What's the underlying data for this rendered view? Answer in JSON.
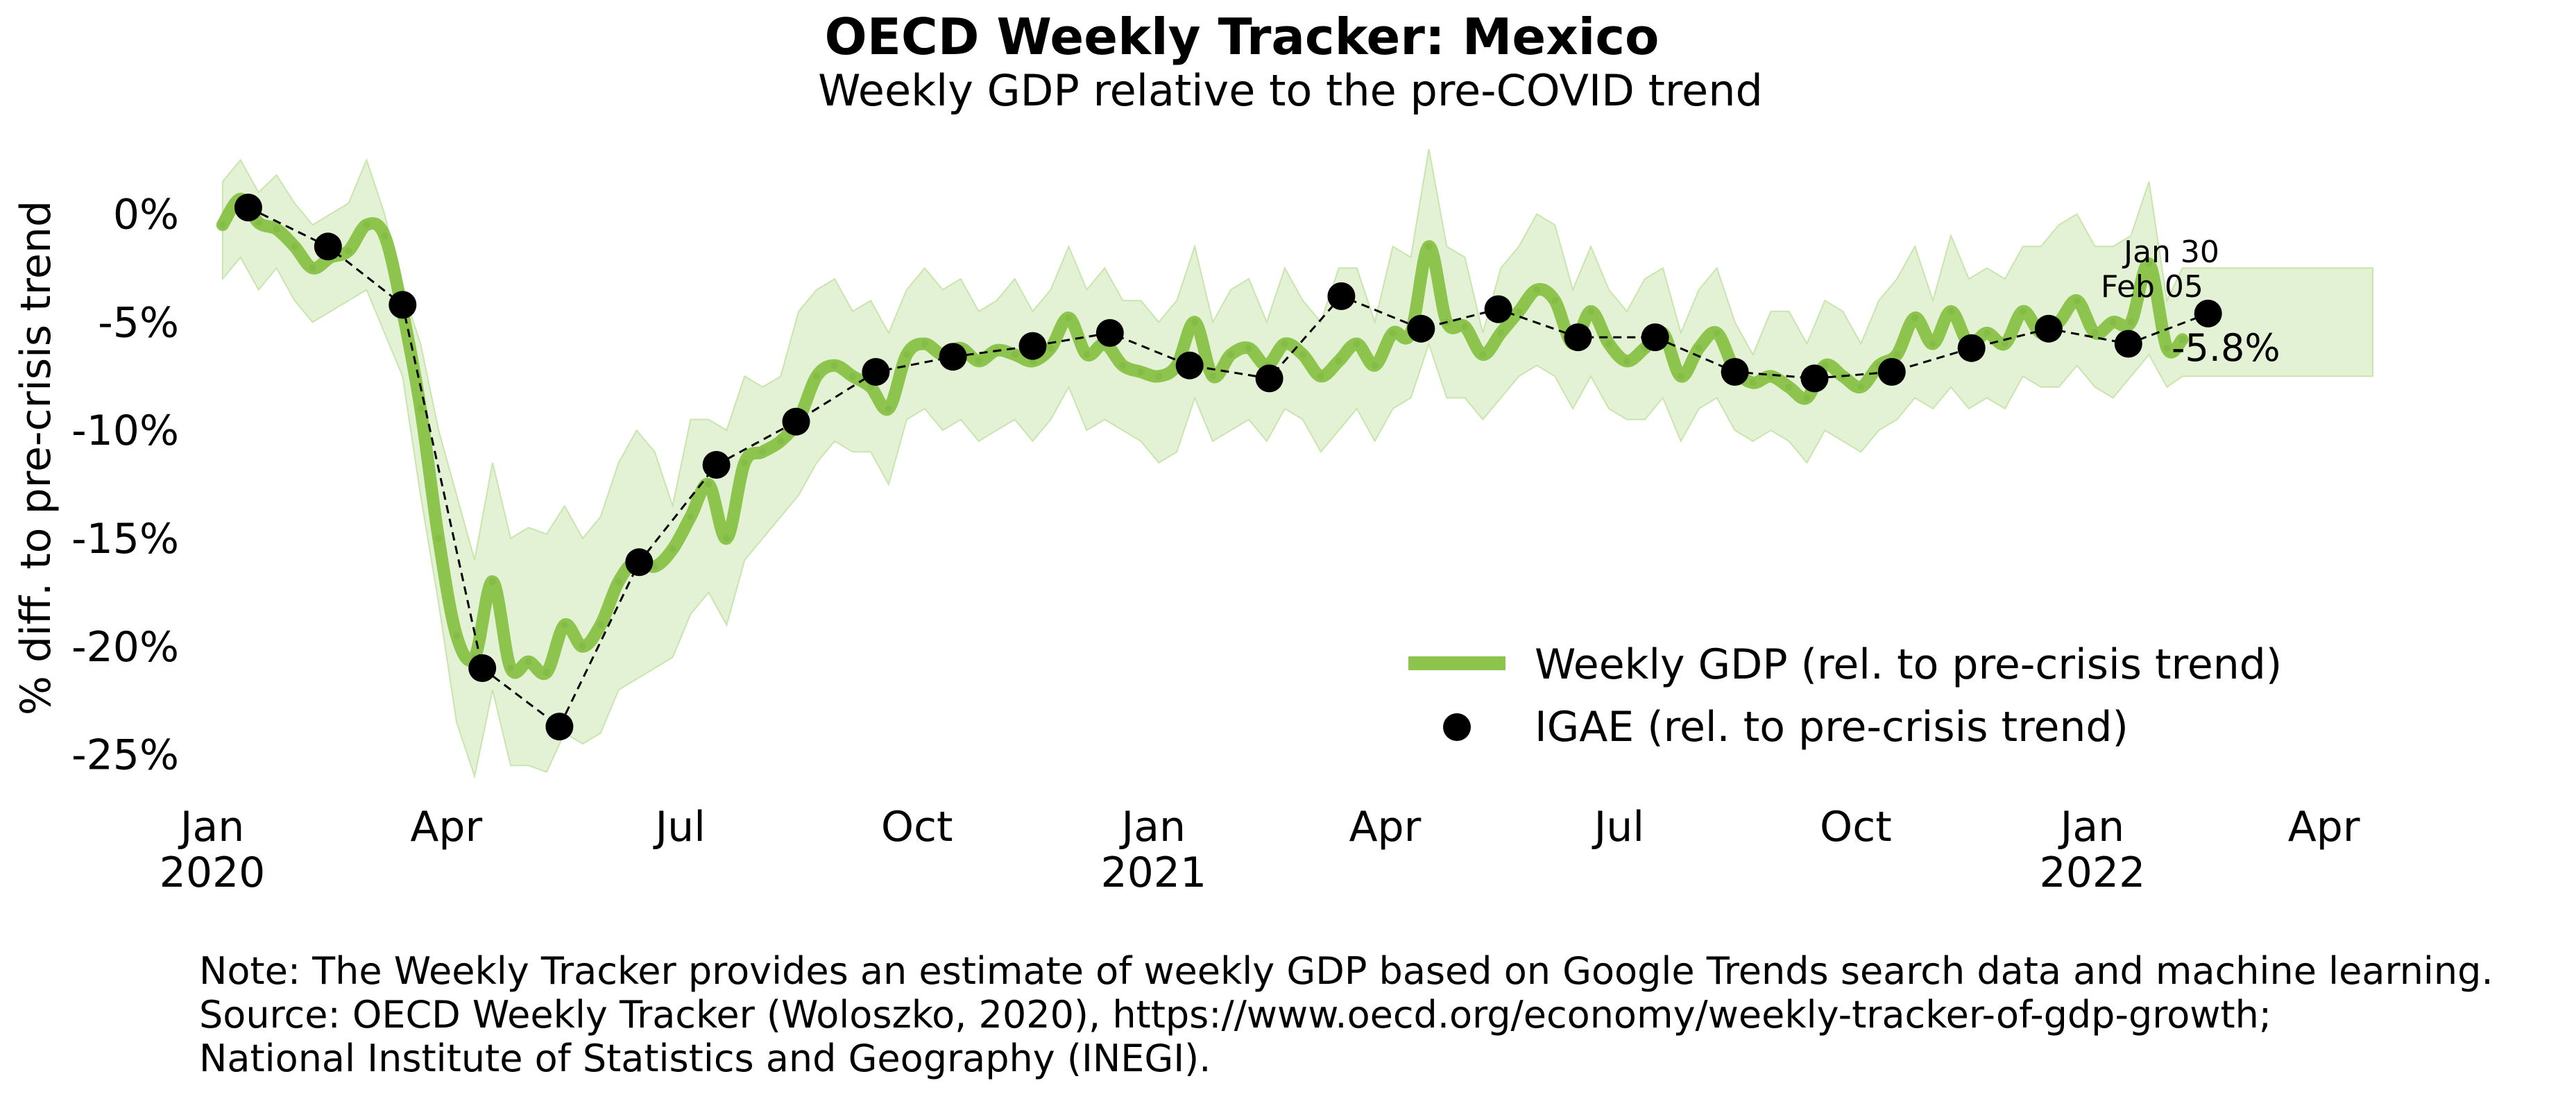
{
  "chart_data": {
    "type": "line",
    "title": "OECD Weekly Tracker: Mexico",
    "subtitle": "Weekly GDP relative to the pre-COVID trend",
    "ylabel": "% diff. to pre-crisis trend",
    "xlabel": "",
    "ylim": [
      -27,
      3
    ],
    "xlim": [
      "2019-12-25",
      "2022-04-20"
    ],
    "grid": false,
    "y_ticks": [
      0,
      -5,
      -10,
      -15,
      -20,
      -25
    ],
    "y_tick_labels": [
      "0%",
      "-5%",
      "-10%",
      "-15%",
      "-20%",
      "-25%"
    ],
    "x_ticks": [
      {
        "date": "2020-01-01",
        "label": "Jan",
        "year": "2020"
      },
      {
        "date": "2020-04-01",
        "label": "Apr",
        "year": ""
      },
      {
        "date": "2020-07-01",
        "label": "Jul",
        "year": ""
      },
      {
        "date": "2020-10-01",
        "label": "Oct",
        "year": ""
      },
      {
        "date": "2021-01-01",
        "label": "Jan",
        "year": "2021"
      },
      {
        "date": "2021-04-01",
        "label": "Apr",
        "year": ""
      },
      {
        "date": "2021-07-01",
        "label": "Jul",
        "year": ""
      },
      {
        "date": "2021-10-01",
        "label": "Oct",
        "year": ""
      },
      {
        "date": "2022-01-01",
        "label": "Jan",
        "year": "2022"
      },
      {
        "date": "2022-04-01",
        "label": "Apr",
        "year": ""
      }
    ],
    "legend": {
      "placement": "lower-right",
      "entries": [
        "Weekly GDP (rel. to pre-crisis trend)",
        "IGAE (rel. to pre-crisis trend)"
      ]
    },
    "colors": {
      "weekly": "#8cc44e",
      "band": "#e3f2d4",
      "band_edge": "#c9e5ad",
      "igae": "#000000"
    },
    "series": [
      {
        "name": "Weekly GDP (rel. to pre-crisis trend)",
        "kind": "weekly-line",
        "x": [
          "2020-01-05",
          "2020-01-12",
          "2020-01-19",
          "2020-01-26",
          "2020-02-02",
          "2020-02-09",
          "2020-02-16",
          "2020-02-23",
          "2020-03-01",
          "2020-03-08",
          "2020-03-15",
          "2020-03-22",
          "2020-03-29",
          "2020-04-05",
          "2020-04-12",
          "2020-04-19",
          "2020-04-26",
          "2020-05-03",
          "2020-05-10",
          "2020-05-17",
          "2020-05-24",
          "2020-05-31",
          "2020-06-07",
          "2020-06-14",
          "2020-06-21",
          "2020-06-28",
          "2020-07-05",
          "2020-07-12",
          "2020-07-19",
          "2020-07-26",
          "2020-08-02",
          "2020-08-09",
          "2020-08-16",
          "2020-08-23",
          "2020-08-30",
          "2020-09-06",
          "2020-09-13",
          "2020-09-20",
          "2020-09-27",
          "2020-10-04",
          "2020-10-11",
          "2020-10-18",
          "2020-10-25",
          "2020-11-01",
          "2020-11-08",
          "2020-11-15",
          "2020-11-22",
          "2020-11-29",
          "2020-12-06",
          "2020-12-13",
          "2020-12-20",
          "2020-12-27",
          "2021-01-03",
          "2021-01-10",
          "2021-01-17",
          "2021-01-24",
          "2021-01-31",
          "2021-02-07",
          "2021-02-14",
          "2021-02-21",
          "2021-02-28",
          "2021-03-07",
          "2021-03-14",
          "2021-03-21",
          "2021-03-28",
          "2021-04-04",
          "2021-04-11",
          "2021-04-18",
          "2021-04-25",
          "2021-05-02",
          "2021-05-09",
          "2021-05-16",
          "2021-05-23",
          "2021-05-30",
          "2021-06-06",
          "2021-06-13",
          "2021-06-20",
          "2021-06-27",
          "2021-07-04",
          "2021-07-11",
          "2021-07-18",
          "2021-07-25",
          "2021-08-01",
          "2021-08-08",
          "2021-08-15",
          "2021-08-22",
          "2021-08-29",
          "2021-09-05",
          "2021-09-12",
          "2021-09-19",
          "2021-09-26",
          "2021-10-03",
          "2021-10-10",
          "2021-10-17",
          "2021-10-24",
          "2021-10-31",
          "2021-11-07",
          "2021-11-14",
          "2021-11-21",
          "2021-11-28",
          "2021-12-05",
          "2021-12-12",
          "2021-12-19",
          "2021-12-26",
          "2022-01-02",
          "2022-01-09",
          "2022-01-16",
          "2022-01-23",
          "2022-01-30",
          "2022-02-05"
        ],
        "values": [
          -0.5,
          0.7,
          -0.4,
          -0.7,
          -1.5,
          -2.5,
          -2.0,
          -1.7,
          -0.5,
          -1.0,
          -4.5,
          -9.0,
          -15.0,
          -19.5,
          -20.5,
          -17.0,
          -21.0,
          -20.7,
          -21.2,
          -19.0,
          -20.0,
          -19.0,
          -17.0,
          -16.0,
          -16.3,
          -15.5,
          -14.0,
          -12.5,
          -15.0,
          -11.5,
          -11.0,
          -10.5,
          -9.5,
          -7.5,
          -7.0,
          -7.5,
          -8.0,
          -9.0,
          -6.5,
          -6.0,
          -6.5,
          -6.2,
          -6.8,
          -6.3,
          -6.5,
          -6.8,
          -6.2,
          -4.8,
          -6.5,
          -6.0,
          -7.0,
          -7.3,
          -7.5,
          -7.0,
          -5.0,
          -7.5,
          -6.5,
          -6.2,
          -7.0,
          -6.0,
          -6.5,
          -7.5,
          -6.8,
          -6.0,
          -7.0,
          -5.5,
          -5.5,
          -1.5,
          -5.0,
          -5.2,
          -6.5,
          -5.5,
          -4.5,
          -3.5,
          -4.0,
          -6.0,
          -4.5,
          -6.0,
          -6.8,
          -6.2,
          -5.5,
          -7.5,
          -6.2,
          -5.5,
          -7.2,
          -7.8,
          -7.5,
          -8.0,
          -8.5,
          -7.0,
          -7.5,
          -8.0,
          -7.0,
          -6.5,
          -4.8,
          -6.0,
          -4.5,
          -6.0,
          -5.5,
          -6.0,
          -4.5,
          -5.5,
          -5.0,
          -4.0,
          -5.5,
          -5.0,
          -5.0,
          -2.3,
          -6.2,
          -5.8
        ]
      },
      {
        "name": "IGAE (rel. to pre-crisis trend)",
        "kind": "monthly-points",
        "x": [
          "2020-01-15",
          "2020-02-15",
          "2020-03-15",
          "2020-04-15",
          "2020-05-15",
          "2020-06-15",
          "2020-07-15",
          "2020-08-15",
          "2020-09-15",
          "2020-10-15",
          "2020-11-15",
          "2020-12-15",
          "2021-01-15",
          "2021-02-15",
          "2021-03-15",
          "2021-04-15",
          "2021-05-15",
          "2021-06-15",
          "2021-07-15",
          "2021-08-15",
          "2021-09-15",
          "2021-10-15",
          "2021-11-15",
          "2021-12-15",
          "2022-01-15",
          "2022-02-15"
        ],
        "values": [
          0.3,
          -1.5,
          -4.2,
          -21.0,
          -23.7,
          -16.1,
          -11.6,
          -9.6,
          -7.3,
          -6.6,
          -6.1,
          -5.5,
          -7.0,
          -7.6,
          -3.8,
          -5.3,
          -4.4,
          -5.7,
          -5.7,
          -7.3,
          -7.6,
          -7.3,
          -6.2,
          -5.3,
          -6.0,
          -4.6
        ]
      }
    ],
    "band": {
      "x": [
        "2020-01-05",
        "2020-01-12",
        "2020-01-19",
        "2020-01-26",
        "2020-02-02",
        "2020-02-09",
        "2020-02-16",
        "2020-02-23",
        "2020-03-01",
        "2020-03-08",
        "2020-03-15",
        "2020-03-22",
        "2020-03-29",
        "2020-04-05",
        "2020-04-12",
        "2020-04-19",
        "2020-04-26",
        "2020-05-03",
        "2020-05-10",
        "2020-05-17",
        "2020-05-24",
        "2020-05-31",
        "2020-06-07",
        "2020-06-14",
        "2020-06-21",
        "2020-06-28",
        "2020-07-05",
        "2020-07-12",
        "2020-07-19",
        "2020-07-26",
        "2020-08-02",
        "2020-08-09",
        "2020-08-16",
        "2020-08-23",
        "2020-08-30",
        "2020-09-06",
        "2020-09-13",
        "2020-09-20",
        "2020-09-27",
        "2020-10-04",
        "2020-10-11",
        "2020-10-18",
        "2020-10-25",
        "2020-11-01",
        "2020-11-08",
        "2020-11-15",
        "2020-11-22",
        "2020-11-29",
        "2020-12-06",
        "2020-12-13",
        "2020-12-20",
        "2020-12-27",
        "2021-01-03",
        "2021-01-10",
        "2021-01-17",
        "2021-01-24",
        "2021-01-31",
        "2021-02-07",
        "2021-02-14",
        "2021-02-21",
        "2021-02-28",
        "2021-03-07",
        "2021-03-14",
        "2021-03-21",
        "2021-03-28",
        "2021-04-04",
        "2021-04-11",
        "2021-04-18",
        "2021-04-25",
        "2021-05-02",
        "2021-05-09",
        "2021-05-16",
        "2021-05-23",
        "2021-05-30",
        "2021-06-06",
        "2021-06-13",
        "2021-06-20",
        "2021-06-27",
        "2021-07-04",
        "2021-07-11",
        "2021-07-18",
        "2021-07-25",
        "2021-08-01",
        "2021-08-08",
        "2021-08-15",
        "2021-08-22",
        "2021-08-29",
        "2021-09-05",
        "2021-09-12",
        "2021-09-19",
        "2021-09-26",
        "2021-10-03",
        "2021-10-10",
        "2021-10-17",
        "2021-10-24",
        "2021-10-31",
        "2021-11-07",
        "2021-11-14",
        "2021-11-21",
        "2021-11-28",
        "2021-12-05",
        "2021-12-12",
        "2021-12-19",
        "2021-12-26",
        "2022-01-02",
        "2022-01-09",
        "2022-01-16",
        "2022-01-23",
        "2022-01-30",
        "2022-02-05",
        "2022-02-20",
        "2022-03-10",
        "2022-04-20"
      ],
      "upper": [
        1.5,
        2.5,
        1.0,
        1.8,
        0.5,
        -0.5,
        0.0,
        0.5,
        2.5,
        0.0,
        -3.5,
        -6.0,
        -10.0,
        -13.0,
        -16.0,
        -11.5,
        -15.0,
        -14.5,
        -14.8,
        -13.5,
        -15.0,
        -14.0,
        -11.5,
        -10.0,
        -11.0,
        -13.5,
        -9.5,
        -9.5,
        -10.0,
        -7.5,
        -8.0,
        -7.5,
        -4.5,
        -3.5,
        -3.0,
        -4.5,
        -4.0,
        -5.5,
        -3.5,
        -2.5,
        -3.5,
        -3.0,
        -4.5,
        -4.0,
        -3.0,
        -4.5,
        -3.5,
        -1.5,
        -3.5,
        -2.5,
        -4.0,
        -4.0,
        -5.0,
        -4.0,
        -1.5,
        -5.0,
        -3.5,
        -3.0,
        -5.0,
        -2.5,
        -4.0,
        -5.0,
        -2.5,
        -2.5,
        -5.0,
        -1.5,
        -2.0,
        3.0,
        -1.5,
        -2.0,
        -5.5,
        -2.5,
        -1.5,
        0.0,
        -0.5,
        -3.5,
        -1.5,
        -3.5,
        -4.5,
        -3.0,
        -2.5,
        -5.5,
        -3.5,
        -2.5,
        -5.0,
        -6.5,
        -4.5,
        -4.5,
        -6.0,
        -4.0,
        -4.5,
        -6.0,
        -4.0,
        -3.0,
        -1.5,
        -4.0,
        -1.0,
        -3.0,
        -2.5,
        -3.0,
        -1.5,
        -1.5,
        -0.5,
        0.0,
        -1.5,
        -1.5,
        -1.0,
        1.5,
        -4.0,
        -2.5,
        -2.5,
        -2.5,
        -2.5
      ],
      "lower": [
        -3.0,
        -2.0,
        -3.5,
        -2.5,
        -4.0,
        -5.0,
        -4.5,
        -4.0,
        -3.5,
        -5.5,
        -7.5,
        -13.0,
        -18.0,
        -23.5,
        -26.0,
        -22.0,
        -25.5,
        -25.5,
        -25.8,
        -24.0,
        -24.5,
        -24.0,
        -22.0,
        -21.5,
        -21.0,
        -20.5,
        -18.5,
        -17.5,
        -19.0,
        -16.0,
        -15.0,
        -14.0,
        -13.0,
        -11.5,
        -10.5,
        -11.0,
        -11.0,
        -12.5,
        -9.5,
        -9.0,
        -10.0,
        -9.5,
        -10.5,
        -10.0,
        -9.5,
        -10.5,
        -9.5,
        -8.0,
        -10.0,
        -9.5,
        -10.0,
        -10.5,
        -11.5,
        -11.0,
        -8.5,
        -10.5,
        -10.0,
        -9.5,
        -10.5,
        -9.0,
        -9.5,
        -11.0,
        -10.0,
        -9.0,
        -10.5,
        -9.0,
        -8.5,
        -6.0,
        -8.5,
        -8.5,
        -9.5,
        -8.5,
        -7.5,
        -7.0,
        -7.5,
        -9.0,
        -7.5,
        -9.0,
        -9.5,
        -9.5,
        -8.5,
        -10.5,
        -9.0,
        -8.5,
        -10.0,
        -10.5,
        -10.0,
        -10.5,
        -11.5,
        -10.0,
        -10.5,
        -11.0,
        -10.0,
        -9.5,
        -8.5,
        -9.0,
        -8.0,
        -9.0,
        -8.5,
        -9.0,
        -7.5,
        -8.0,
        -8.0,
        -7.0,
        -8.0,
        -8.5,
        -7.5,
        -6.5,
        -8.0,
        -7.5,
        -7.5,
        -7.5,
        -7.5
      ]
    },
    "annotations": {
      "last_igae_date": "Jan 30",
      "last_weekly_date": "Feb 05",
      "last_value": "-5.8%"
    },
    "note": [
      "Note: The Weekly Tracker provides an estimate of weekly GDP based on Google Trends search data and machine learning.",
      "Source: OECD Weekly Tracker (Woloszko, 2020), https://www.oecd.org/economy/weekly-tracker-of-gdp-growth;",
      "National Institute of Statistics and Geography (INEGI)."
    ]
  }
}
